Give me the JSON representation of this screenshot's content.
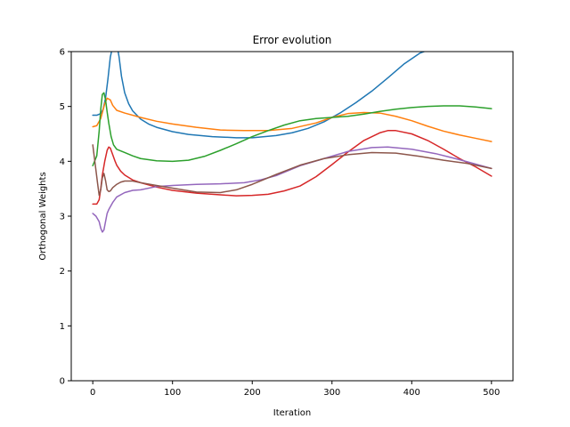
{
  "chart_data": {
    "type": "line",
    "title": "Error evolution",
    "xlabel": "Iteration",
    "ylabel": "Orthogonal Weights",
    "xlim": [
      -27,
      527
    ],
    "ylim": [
      0,
      6
    ],
    "xticks": [
      0,
      100,
      200,
      300,
      400,
      500
    ],
    "yticks": [
      0,
      1,
      2,
      3,
      4,
      5,
      6
    ],
    "grid": false,
    "legend": "none",
    "series": [
      {
        "color": "#1f77b4",
        "x": [
          0,
          5,
          10,
          13,
          16,
          19,
          22,
          25,
          28,
          30,
          33,
          36,
          40,
          45,
          50,
          60,
          70,
          80,
          100,
          120,
          150,
          180,
          200,
          230,
          250,
          270,
          290,
          310,
          330,
          350,
          370,
          390,
          410,
          430,
          450
        ],
        "y": [
          4.84,
          4.84,
          4.87,
          4.95,
          5.15,
          5.5,
          5.9,
          6.1,
          6.2,
          6.15,
          5.9,
          5.55,
          5.25,
          5.05,
          4.92,
          4.77,
          4.68,
          4.62,
          4.54,
          4.49,
          4.45,
          4.43,
          4.43,
          4.47,
          4.52,
          4.6,
          4.72,
          4.88,
          5.07,
          5.28,
          5.52,
          5.77,
          5.97,
          6.08,
          6.15
        ]
      },
      {
        "color": "#ff7f0e",
        "x": [
          0,
          5,
          10,
          15,
          18,
          22,
          25,
          30,
          40,
          60,
          80,
          100,
          130,
          160,
          190,
          220,
          250,
          280,
          300,
          320,
          340,
          360,
          380,
          400,
          420,
          440,
          460,
          480,
          500
        ],
        "y": [
          4.63,
          4.65,
          4.78,
          5.05,
          5.15,
          5.12,
          5.02,
          4.93,
          4.88,
          4.8,
          4.73,
          4.68,
          4.62,
          4.57,
          4.56,
          4.56,
          4.6,
          4.7,
          4.8,
          4.87,
          4.89,
          4.88,
          4.82,
          4.74,
          4.64,
          4.55,
          4.48,
          4.42,
          4.36
        ]
      },
      {
        "color": "#2ca02c",
        "x": [
          0,
          5,
          8,
          10,
          12,
          14,
          16,
          18,
          20,
          23,
          26,
          30,
          40,
          50,
          60,
          80,
          100,
          120,
          140,
          160,
          180,
          200,
          220,
          240,
          260,
          280,
          300,
          320,
          340,
          360,
          380,
          400,
          420,
          440,
          460,
          480,
          500
        ],
        "y": [
          3.92,
          4.1,
          4.55,
          4.95,
          5.22,
          5.25,
          5.12,
          4.9,
          4.7,
          4.45,
          4.3,
          4.22,
          4.16,
          4.1,
          4.05,
          4.01,
          4.0,
          4.02,
          4.09,
          4.2,
          4.32,
          4.45,
          4.56,
          4.66,
          4.74,
          4.78,
          4.8,
          4.82,
          4.86,
          4.91,
          4.95,
          4.98,
          5.0,
          5.01,
          5.01,
          4.99,
          4.96
        ]
      },
      {
        "color": "#d62728",
        "x": [
          0,
          5,
          8,
          10,
          12,
          15,
          18,
          20,
          22,
          25,
          28,
          30,
          35,
          40,
          50,
          60,
          80,
          100,
          130,
          160,
          180,
          200,
          220,
          240,
          260,
          280,
          300,
          320,
          340,
          360,
          370,
          380,
          400,
          420,
          440,
          460,
          480,
          500
        ],
        "y": [
          3.22,
          3.22,
          3.3,
          3.5,
          3.75,
          4.0,
          4.2,
          4.26,
          4.24,
          4.12,
          4.0,
          3.93,
          3.82,
          3.75,
          3.66,
          3.61,
          3.53,
          3.47,
          3.42,
          3.39,
          3.37,
          3.38,
          3.4,
          3.46,
          3.55,
          3.72,
          3.94,
          4.17,
          4.38,
          4.52,
          4.56,
          4.56,
          4.5,
          4.38,
          4.22,
          4.05,
          3.9,
          3.73
        ]
      },
      {
        "color": "#9467bd",
        "x": [
          0,
          4,
          8,
          10,
          12,
          14,
          16,
          18,
          20,
          25,
          30,
          40,
          50,
          60,
          80,
          100,
          130,
          160,
          190,
          210,
          230,
          260,
          290,
          320,
          350,
          370,
          400,
          430,
          460,
          500
        ],
        "y": [
          3.05,
          3.0,
          2.9,
          2.78,
          2.71,
          2.75,
          2.9,
          3.05,
          3.12,
          3.25,
          3.35,
          3.43,
          3.47,
          3.48,
          3.54,
          3.56,
          3.58,
          3.59,
          3.61,
          3.66,
          3.74,
          3.92,
          4.05,
          4.18,
          4.25,
          4.26,
          4.22,
          4.14,
          4.03,
          3.87
        ]
      },
      {
        "color": "#8c564b",
        "x": [
          0,
          3,
          6,
          8,
          10,
          12,
          14,
          16,
          18,
          20,
          22,
          25,
          30,
          35,
          40,
          50,
          60,
          80,
          100,
          130,
          160,
          180,
          200,
          230,
          260,
          290,
          320,
          350,
          380,
          410,
          440,
          470,
          500
        ],
        "y": [
          4.3,
          3.95,
          3.6,
          3.38,
          3.48,
          3.7,
          3.78,
          3.65,
          3.48,
          3.45,
          3.46,
          3.52,
          3.58,
          3.62,
          3.64,
          3.64,
          3.61,
          3.56,
          3.51,
          3.44,
          3.43,
          3.48,
          3.58,
          3.76,
          3.93,
          4.05,
          4.12,
          4.16,
          4.15,
          4.09,
          4.02,
          3.96,
          3.87
        ]
      }
    ]
  }
}
